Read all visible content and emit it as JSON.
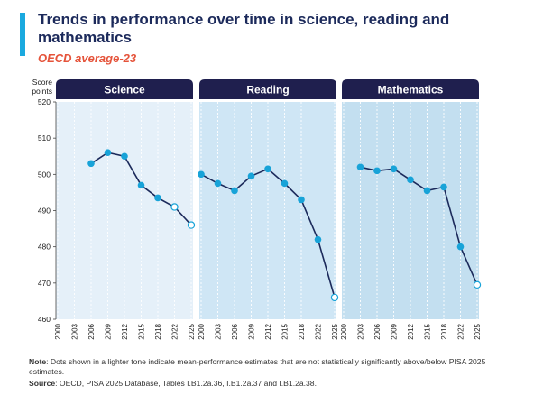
{
  "title": "Trends in performance over time in science, reading and mathematics",
  "subtitle": "OECD average-23",
  "colors": {
    "accent": "#1aa9df",
    "title": "#1c2a5b",
    "subtitle": "#e5533a",
    "header": "#1f1f4e",
    "header_text": "#ffffff",
    "line": "#1c2a5b",
    "dot": "#18a3d8",
    "dot_light_fill": "#ffffff",
    "panel_bg": [
      "#e5f0f9",
      "#cfe6f5",
      "#c3dff0"
    ]
  },
  "note": {
    "label": "Note",
    "text": ": Dots shown in a lighter tone indicate mean-performance estimates that are not statistically significantly above/below PISA 2025 estimates."
  },
  "source": {
    "label": "Source",
    "text": ":  OECD, PISA 2025 Database, Tables I.B1.2a.36, I.B1.2a.37 and I.B1.2a.38."
  },
  "chart_data": {
    "type": "line",
    "ylabel": "Score points",
    "ylim": [
      460,
      520
    ],
    "yticks": [
      460,
      470,
      480,
      490,
      500,
      510,
      520
    ],
    "x_tick_labels": [
      "2000",
      "2003",
      "2006",
      "2009",
      "2012",
      "2015",
      "2018",
      "2022",
      "2025"
    ],
    "grid": true,
    "panels": [
      {
        "name": "Science",
        "series": [
          {
            "x": "2006",
            "y": 503,
            "significant": true
          },
          {
            "x": "2009",
            "y": 506,
            "significant": true
          },
          {
            "x": "2012",
            "y": 505,
            "significant": true
          },
          {
            "x": "2015",
            "y": 497,
            "significant": true
          },
          {
            "x": "2018",
            "y": 493.5,
            "significant": true
          },
          {
            "x": "2022",
            "y": 491,
            "significant": false
          },
          {
            "x": "2025",
            "y": 486,
            "significant": false
          }
        ]
      },
      {
        "name": "Reading",
        "series": [
          {
            "x": "2000",
            "y": 500,
            "significant": true
          },
          {
            "x": "2003",
            "y": 497.5,
            "significant": true
          },
          {
            "x": "2006",
            "y": 495.5,
            "significant": true
          },
          {
            "x": "2009",
            "y": 499.5,
            "significant": true
          },
          {
            "x": "2012",
            "y": 501.5,
            "significant": true
          },
          {
            "x": "2015",
            "y": 497.5,
            "significant": true
          },
          {
            "x": "2018",
            "y": 493,
            "significant": true
          },
          {
            "x": "2022",
            "y": 482,
            "significant": true
          },
          {
            "x": "2025",
            "y": 466,
            "significant": false
          }
        ]
      },
      {
        "name": "Mathematics",
        "series": [
          {
            "x": "2003",
            "y": 502,
            "significant": true
          },
          {
            "x": "2006",
            "y": 501,
            "significant": true
          },
          {
            "x": "2009",
            "y": 501.5,
            "significant": true
          },
          {
            "x": "2012",
            "y": 498.5,
            "significant": true
          },
          {
            "x": "2015",
            "y": 495.5,
            "significant": true
          },
          {
            "x": "2018",
            "y": 496.5,
            "significant": true
          },
          {
            "x": "2022",
            "y": 480,
            "significant": true
          },
          {
            "x": "2025",
            "y": 469.5,
            "significant": false
          }
        ]
      }
    ]
  }
}
